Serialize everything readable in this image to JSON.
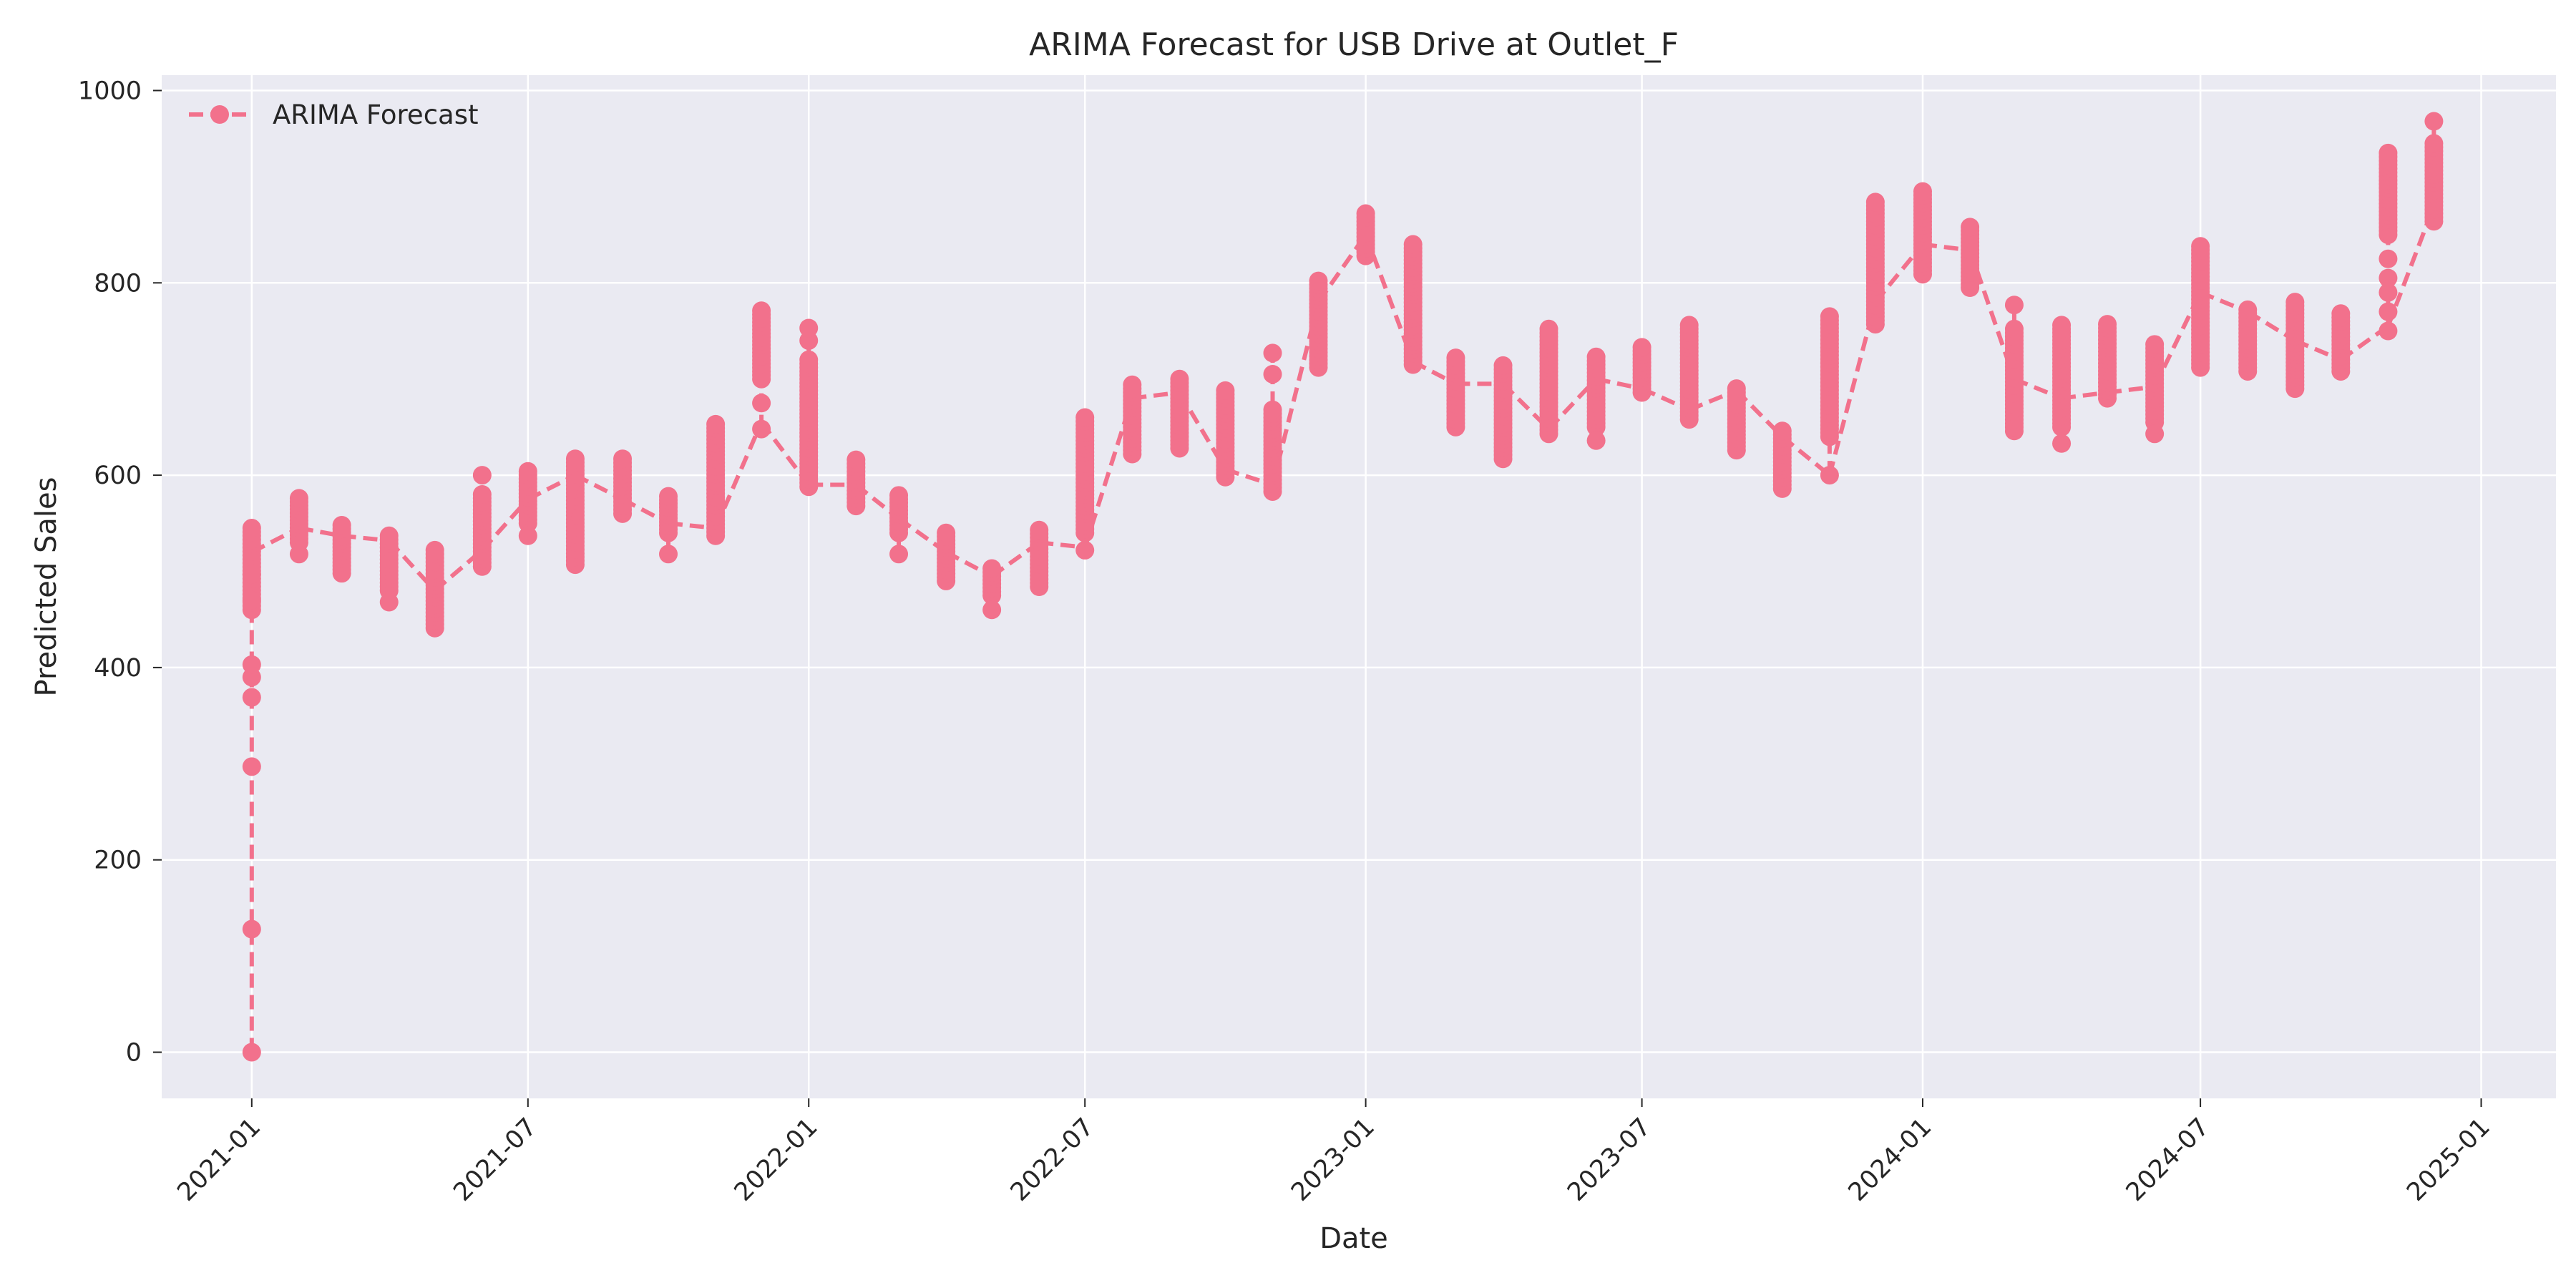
{
  "chart_data": {
    "type": "line",
    "title": "ARIMA Forecast for USB Drive at Outlet_F",
    "xlabel": "Date",
    "ylabel": "Predicted Sales",
    "ylim": [
      -48,
      1016
    ],
    "xlim": [
      "2020-11-03",
      "2025-02-19"
    ],
    "grid": true,
    "legend": {
      "placement": "top-left"
    },
    "x_ticks": [
      "2021-01",
      "2021-07",
      "2022-01",
      "2022-07",
      "2023-01",
      "2023-07",
      "2024-01",
      "2024-07",
      "2025-01"
    ],
    "y_ticks": [
      0,
      200,
      400,
      600,
      800,
      1000
    ],
    "colors": {
      "series": "#f2718c",
      "plot_background": "#eaeaf2",
      "grid": "#ffffff",
      "text": "#262626"
    },
    "series": [
      {
        "name": "ARIMA Forecast",
        "style": {
          "line": "dashed",
          "marker": "circle"
        },
        "groups": [
          {
            "date": "2021-01-01",
            "min": 0,
            "max": 545,
            "level": 520,
            "bulk": [
              460,
              545
            ],
            "sparse": [
              0,
              128,
              297,
              369,
              390,
              403,
              470,
              497
            ]
          },
          {
            "date": "2021-02-01",
            "min": 518,
            "max": 576,
            "level": 545,
            "bulk": [
              530,
              576
            ],
            "sparse": [
              518
            ]
          },
          {
            "date": "2021-03-01",
            "min": 498,
            "max": 548,
            "level": 537,
            "bulk": [
              498,
              548
            ],
            "sparse": []
          },
          {
            "date": "2021-04-01",
            "min": 468,
            "max": 537,
            "level": 532,
            "bulk": [
              480,
              537
            ],
            "sparse": [
              468
            ]
          },
          {
            "date": "2021-05-01",
            "min": 441,
            "max": 522,
            "level": 480,
            "bulk": [
              441,
              522
            ],
            "sparse": []
          },
          {
            "date": "2021-06-01",
            "min": 505,
            "max": 600,
            "level": 522,
            "bulk": [
              505,
              580
            ],
            "sparse": [
              600
            ]
          },
          {
            "date": "2021-07-01",
            "min": 537,
            "max": 604,
            "level": 575,
            "bulk": [
              550,
              604
            ],
            "sparse": [
              537
            ]
          },
          {
            "date": "2021-08-01",
            "min": 507,
            "max": 617,
            "level": 600,
            "bulk": [
              507,
              617
            ],
            "sparse": []
          },
          {
            "date": "2021-09-01",
            "min": 560,
            "max": 617,
            "level": 575,
            "bulk": [
              560,
              617
            ],
            "sparse": []
          },
          {
            "date": "2021-10-01",
            "min": 518,
            "max": 578,
            "level": 550,
            "bulk": [
              540,
              578
            ],
            "sparse": [
              518
            ]
          },
          {
            "date": "2021-11-01",
            "min": 537,
            "max": 653,
            "level": 545,
            "bulk": [
              537,
              653
            ],
            "sparse": []
          },
          {
            "date": "2021-12-01",
            "min": 648,
            "max": 771,
            "level": 655,
            "bulk": [
              700,
              771
            ],
            "sparse": [
              648,
              675
            ]
          },
          {
            "date": "2022-01-01",
            "min": 588,
            "max": 753,
            "level": 590,
            "bulk": [
              588,
              720
            ],
            "sparse": [
              740,
              753
            ]
          },
          {
            "date": "2022-02-01",
            "min": 568,
            "max": 616,
            "level": 590,
            "bulk": [
              568,
              616
            ],
            "sparse": []
          },
          {
            "date": "2022-03-01",
            "min": 518,
            "max": 579,
            "level": 555,
            "bulk": [
              540,
              579
            ],
            "sparse": [
              518
            ]
          },
          {
            "date": "2022-04-01",
            "min": 490,
            "max": 540,
            "level": 520,
            "bulk": [
              490,
              540
            ],
            "sparse": []
          },
          {
            "date": "2022-05-01",
            "min": 460,
            "max": 503,
            "level": 495,
            "bulk": [
              475,
              503
            ],
            "sparse": [
              460
            ]
          },
          {
            "date": "2022-06-01",
            "min": 484,
            "max": 543,
            "level": 530,
            "bulk": [
              484,
              543
            ],
            "sparse": []
          },
          {
            "date": "2022-07-01",
            "min": 522,
            "max": 660,
            "level": 525,
            "bulk": [
              540,
              660
            ],
            "sparse": [
              522
            ]
          },
          {
            "date": "2022-08-01",
            "min": 622,
            "max": 694,
            "level": 680,
            "bulk": [
              622,
              694
            ],
            "sparse": []
          },
          {
            "date": "2022-09-01",
            "min": 628,
            "max": 700,
            "level": 686,
            "bulk": [
              628,
              700
            ],
            "sparse": []
          },
          {
            "date": "2022-10-01",
            "min": 598,
            "max": 688,
            "level": 606,
            "bulk": [
              598,
              688
            ],
            "sparse": []
          },
          {
            "date": "2022-11-01",
            "min": 583,
            "max": 727,
            "level": 590,
            "bulk": [
              583,
              668
            ],
            "sparse": [
              705,
              727
            ]
          },
          {
            "date": "2022-12-01",
            "min": 712,
            "max": 802,
            "level": 780,
            "bulk": [
              712,
              802
            ],
            "sparse": []
          },
          {
            "date": "2023-01-01",
            "min": 828,
            "max": 872,
            "level": 850,
            "bulk": [
              828,
              872
            ],
            "sparse": []
          },
          {
            "date": "2023-02-01",
            "min": 715,
            "max": 840,
            "level": 718,
            "bulk": [
              715,
              840
            ],
            "sparse": []
          },
          {
            "date": "2023-03-01",
            "min": 650,
            "max": 722,
            "level": 695,
            "bulk": [
              650,
              722
            ],
            "sparse": []
          },
          {
            "date": "2023-04-01",
            "min": 617,
            "max": 714,
            "level": 695,
            "bulk": [
              617,
              714
            ],
            "sparse": []
          },
          {
            "date": "2023-05-01",
            "min": 643,
            "max": 752,
            "level": 648,
            "bulk": [
              643,
              752
            ],
            "sparse": []
          },
          {
            "date": "2023-06-01",
            "min": 636,
            "max": 723,
            "level": 700,
            "bulk": [
              650,
              723
            ],
            "sparse": [
              636
            ]
          },
          {
            "date": "2023-07-01",
            "min": 686,
            "max": 733,
            "level": 690,
            "bulk": [
              686,
              733
            ],
            "sparse": []
          },
          {
            "date": "2023-08-01",
            "min": 658,
            "max": 756,
            "level": 668,
            "bulk": [
              658,
              756
            ],
            "sparse": []
          },
          {
            "date": "2023-09-01",
            "min": 626,
            "max": 690,
            "level": 688,
            "bulk": [
              626,
              690
            ],
            "sparse": []
          },
          {
            "date": "2023-10-01",
            "min": 586,
            "max": 646,
            "level": 640,
            "bulk": [
              586,
              646
            ],
            "sparse": []
          },
          {
            "date": "2023-11-01",
            "min": 600,
            "max": 765,
            "level": 600,
            "bulk": [
              640,
              765
            ],
            "sparse": [
              600
            ]
          },
          {
            "date": "2023-12-01",
            "min": 757,
            "max": 884,
            "level": 780,
            "bulk": [
              757,
              884
            ],
            "sparse": []
          },
          {
            "date": "2024-01-01",
            "min": 809,
            "max": 895,
            "level": 840,
            "bulk": [
              809,
              895
            ],
            "sparse": []
          },
          {
            "date": "2024-02-01",
            "min": 795,
            "max": 858,
            "level": 834,
            "bulk": [
              795,
              858
            ],
            "sparse": []
          },
          {
            "date": "2024-03-01",
            "min": 646,
            "max": 777,
            "level": 700,
            "bulk": [
              646,
              752
            ],
            "sparse": [
              777
            ]
          },
          {
            "date": "2024-04-01",
            "min": 633,
            "max": 756,
            "level": 680,
            "bulk": [
              650,
              756
            ],
            "sparse": [
              633
            ]
          },
          {
            "date": "2024-05-01",
            "min": 680,
            "max": 757,
            "level": 686,
            "bulk": [
              680,
              757
            ],
            "sparse": []
          },
          {
            "date": "2024-06-01",
            "min": 643,
            "max": 736,
            "level": 692,
            "bulk": [
              655,
              736
            ],
            "sparse": [
              643
            ]
          },
          {
            "date": "2024-07-01",
            "min": 712,
            "max": 838,
            "level": 790,
            "bulk": [
              712,
              838
            ],
            "sparse": []
          },
          {
            "date": "2024-08-01",
            "min": 708,
            "max": 772,
            "level": 770,
            "bulk": [
              708,
              772
            ],
            "sparse": []
          },
          {
            "date": "2024-09-01",
            "min": 690,
            "max": 780,
            "level": 740,
            "bulk": [
              690,
              780
            ],
            "sparse": []
          },
          {
            "date": "2024-10-01",
            "min": 708,
            "max": 768,
            "level": 720,
            "bulk": [
              708,
              768
            ],
            "sparse": []
          },
          {
            "date": "2024-11-01",
            "min": 750,
            "max": 935,
            "level": 755,
            "bulk": [
              850,
              935
            ],
            "sparse": [
              750,
              770,
              790,
              805,
              825
            ]
          },
          {
            "date": "2024-12-01",
            "min": 864,
            "max": 968,
            "level": 880,
            "bulk": [
              864,
              945
            ],
            "sparse": [
              968
            ]
          }
        ]
      }
    ]
  }
}
